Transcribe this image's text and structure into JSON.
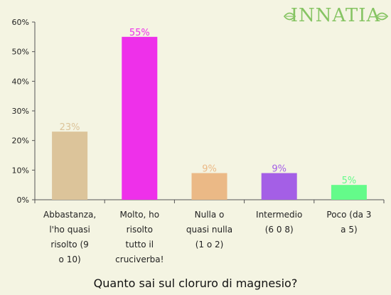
{
  "brand": {
    "name": "INNATIA",
    "color": "#86c463"
  },
  "chart_data": {
    "type": "bar",
    "title": "Quanto sai sul cloruro di magnesio?",
    "xlabel": "",
    "ylabel": "",
    "ylim": [
      0,
      60
    ],
    "yticks": [
      "0%",
      "10%",
      "20%",
      "30%",
      "40%",
      "50%",
      "60%"
    ],
    "grid": false,
    "categories": [
      "Abbastanza, l'ho quasi risolto (9 o 10)",
      "Molto, ho risolto tutto il cruciverba!",
      "Nulla o quasi nulla (1 o 2)",
      "Intermedio (6 0 8)",
      "Poco (da 3 a 5)"
    ],
    "category_lines": [
      [
        "Abbastanza,",
        "l'ho quasi",
        "risolto (9",
        "o 10)"
      ],
      [
        "Molto, ho",
        "risolto",
        "tutto il",
        "cruciverba!"
      ],
      [
        "Nulla o",
        "quasi nulla",
        "(1 o 2)"
      ],
      [
        "Intermedio",
        "(6 0 8)"
      ],
      [
        "Poco (da 3",
        "a 5)"
      ]
    ],
    "values": [
      23,
      55,
      9,
      9,
      5
    ],
    "value_labels": [
      "23%",
      "55%",
      "9%",
      "9%",
      "5%"
    ],
    "colors": [
      "#dcc49a",
      "#ee30ea",
      "#ebb986",
      "#a45fe6",
      "#64fb8a"
    ]
  }
}
